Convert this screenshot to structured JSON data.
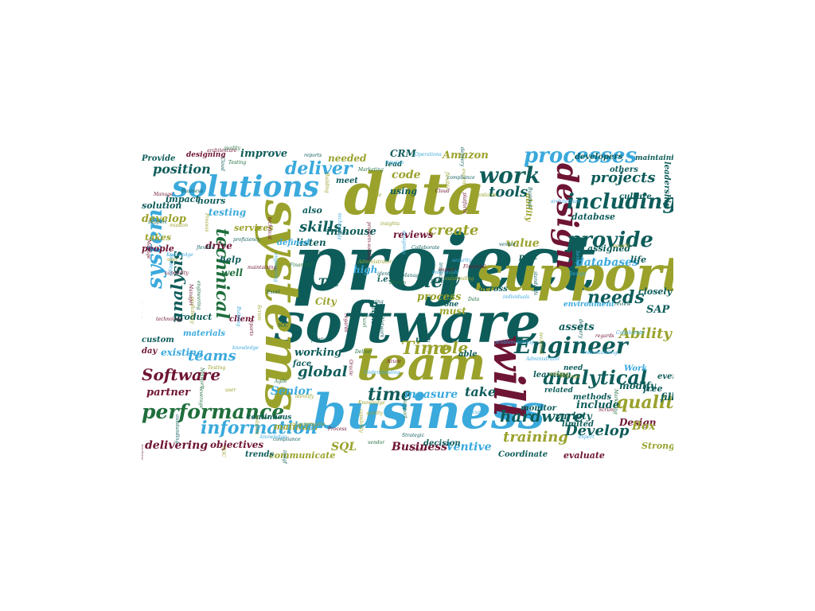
{
  "word_cloud": {
    "palette": {
      "teal": "#0e5c5a",
      "blue": "#3aa9dc",
      "olive": "#9aa22c",
      "maroon": "#6e1434",
      "green": "#1f6e3c"
    },
    "words": {
      "project": "project",
      "software": "software",
      "business": "business",
      "data": "data",
      "team": "team",
      "support": "support",
      "systems": "systems",
      "will": "will",
      "design": "design",
      "solutions": "solutions",
      "engineer": "Engineer",
      "processes": "processes",
      "including": "including",
      "provide": "provide",
      "performance": "performance",
      "information": "information",
      "analytical": "analytical",
      "technical": "technical",
      "system": "system",
      "analysis": "analysis",
      "work": "work",
      "deliver": "deliver",
      "position": "position",
      "needs": "needs",
      "quality": "quality",
      "hardware": "hardware",
      "training": "training",
      "develop_cap": "Develop",
      "ability": "Ability",
      "time_cap": "Time",
      "role": "role",
      "new": "new",
      "time": "time",
      "create": "create",
      "skills": "skills",
      "tools": "tools",
      "projects": "projects",
      "teams": "teams",
      "software_cap": "Software",
      "global": "global",
      "senior": "Senior",
      "business_cap": "Business",
      "sql": "SQL",
      "ventive": "Ventive",
      "delivering": "delivering",
      "communicate": "communicate",
      "measure": "measure",
      "take": "take",
      "improve": "improve",
      "develop": "develop",
      "testing": "testing",
      "in_house": "in-house",
      "code": "code",
      "amazon": "Amazon",
      "crm": "CRM",
      "existing": "existing",
      "working": "working",
      "partner": "partner",
      "tec": "Tec",
      "city": "City",
      "sap": "SAP",
      "database": "database",
      "databases": "databases",
      "value": "value",
      "assets": "assets",
      "include": "include",
      "variety": "variety",
      "evaluate": "evaluate",
      "coordinate": "Coordinate",
      "strong": "Strong",
      "design_cap": "Design",
      "modify": "modify",
      "maintain": "maintain",
      "objectives": "objectives",
      "process": "process",
      "reviews": "reviews",
      "high": "high",
      "must": "must",
      "listen": "listen",
      "services": "services",
      "help": "help",
      "well": "well",
      "also": "also",
      "needed": "needed",
      "using": "using",
      "solution": "solution",
      "people": "people",
      "takes": "takes",
      "impact": "impact",
      "hours": "hours",
      "drive": "drive",
      "product": "product",
      "life": "life",
      "work_cap": "Work",
      "learning": "learning",
      "assigned": "assigned",
      "methods": "methods",
      "monitor": "monitor",
      "limited": "limited",
      "fill": "fill",
      "free": "free",
      "every": "every",
      "closely": "closely",
      "culture": "culture",
      "developers": "developers",
      "others": "others",
      "maintaining": "maintaining",
      "designing": "designing",
      "provide_cap": "Provide",
      "large": "large",
      "decision": "decision",
      "trends": "trends",
      "continuous": "continuous",
      "materials": "materials",
      "custom": "custom",
      "day": "day",
      "face": "face",
      "client": "client",
      "defined": "defined",
      "across": "across",
      "part": "part",
      "able": "able",
      "use": "use",
      "one": "one",
      "leadership": "leadership",
      "ability_lc": "ability",
      "related": "related",
      "need": "need",
      "environment": "environment",
      "teams2": "teams",
      "box": "Box",
      "lead": "lead",
      "meet": "meet",
      "ie": "i.e."
    },
    "filler_words": [
      "Network",
      "designing",
      "individuals",
      "expert",
      "standards",
      "Testing",
      "engineering",
      "regards",
      "SOC",
      "Collaborate",
      "ERP",
      "solution",
      "impact",
      "Process",
      "capability",
      "benefit",
      "Knowledge",
      "technical",
      "Agile",
      "Scrum",
      "Operations",
      "maintaining",
      "compliance",
      "Deliver",
      "quality",
      "leverage",
      "Manage",
      "security",
      "Cloud",
      "support",
      "mission",
      "Strategic",
      "Business",
      "flexible",
      "identify",
      "Understanding",
      "problem-solving",
      "outstanding",
      "proficiency",
      "Administrator",
      "Manager",
      "Data",
      "vendor",
      "Azure",
      "Oracle",
      "Marketing",
      "Financial",
      "Design",
      "user",
      "platform",
      "Building",
      "review",
      "knowledge",
      "requirements",
      "architecture",
      "delivery",
      "insights",
      "reports",
      "Excel",
      "technology"
    ]
  }
}
